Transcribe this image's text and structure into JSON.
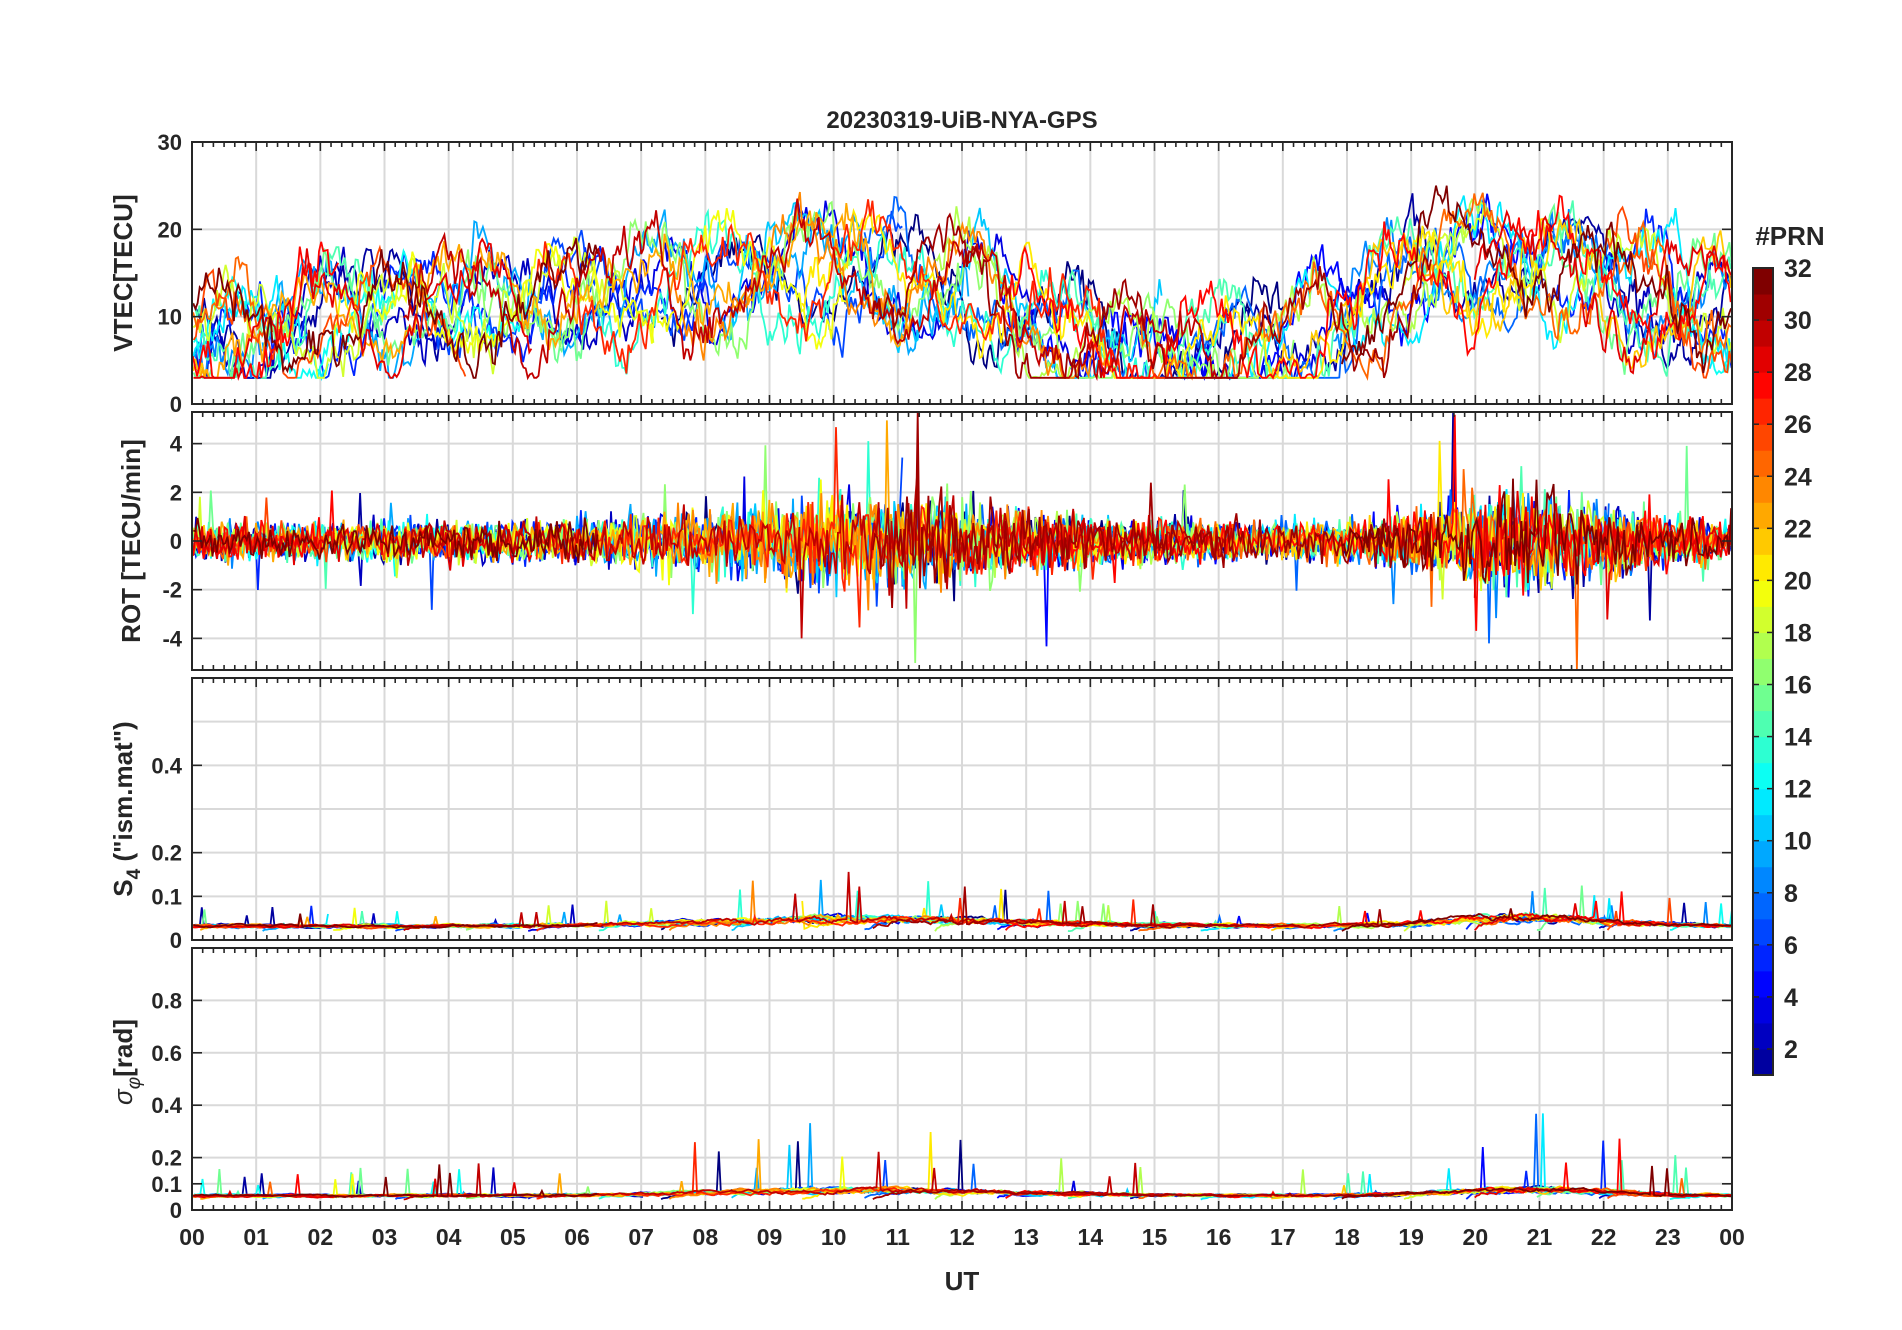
{
  "chart_data": {
    "type": "line",
    "title": "20230319-UiB-NYA-GPS",
    "x_axis": {
      "label": "UT",
      "range_hours": [
        0,
        24
      ],
      "tick_labels": [
        "00",
        "01",
        "02",
        "03",
        "04",
        "05",
        "06",
        "07",
        "08",
        "09",
        "10",
        "11",
        "12",
        "13",
        "14",
        "15",
        "16",
        "17",
        "18",
        "19",
        "20",
        "21",
        "22",
        "23",
        "00"
      ]
    },
    "colorbar": {
      "title": "#PRN",
      "range": [
        1,
        32
      ],
      "tick_values": [
        2,
        4,
        6,
        8,
        10,
        12,
        14,
        16,
        18,
        20,
        22,
        24,
        26,
        28,
        30,
        32
      ],
      "tick_labels": [
        "2",
        "4",
        "6",
        "8",
        "10",
        "12",
        "14",
        "16",
        "18",
        "20",
        "22",
        "24",
        "26",
        "28",
        "30",
        "32"
      ],
      "colormap": "jet",
      "color_stops": [
        "#00007f",
        "#0000ff",
        "#007fff",
        "#00ffff",
        "#7fff7f",
        "#ffff00",
        "#ff7f00",
        "#ff0000",
        "#7f0000"
      ]
    },
    "grid": true,
    "panels": [
      {
        "id": "vtec",
        "ylabel": "VTEC[TECU]",
        "ylim": [
          0,
          30
        ],
        "yticks": [
          0,
          10,
          20,
          30
        ],
        "ytick_labels": [
          "0",
          "10",
          "20",
          "30"
        ],
        "gridlines": [
          0,
          10,
          20,
          30
        ]
      },
      {
        "id": "rot",
        "ylabel": "ROT [TECU/min]",
        "ylim": [
          -5.3,
          5.3
        ],
        "yticks": [
          -4,
          -2,
          0,
          2,
          4
        ],
        "ytick_labels": [
          "-4",
          "-2",
          "0",
          "2",
          "4"
        ],
        "gridlines": [
          -4,
          -2,
          0,
          2,
          4
        ]
      },
      {
        "id": "s4",
        "ylabel_main": "S",
        "ylabel_sub": "4",
        "ylabel_rest": " (\"ism.mat\")",
        "ylim": [
          0,
          0.6
        ],
        "yticks": [
          0,
          0.1,
          0.2,
          0.4
        ],
        "ytick_labels": [
          "0",
          "0.1",
          "0.2",
          "0.4"
        ],
        "gridlines": [
          0.1,
          0.2,
          0.3,
          0.4,
          0.5
        ]
      },
      {
        "id": "sigma",
        "ylabel_main": "σ",
        "ylabel_sub": "φ",
        "ylabel_rest": "[rad]",
        "ylim": [
          0,
          1
        ],
        "yticks": [
          0,
          0.1,
          0.2,
          0.4,
          0.6,
          0.8
        ],
        "ytick_labels": [
          "0",
          "0.1",
          "0.2",
          "0.4",
          "0.6",
          "0.8"
        ],
        "gridlines": [
          0.1,
          0.2,
          0.4,
          0.6,
          0.8
        ]
      }
    ],
    "series_count": 32,
    "series_prn": [
      1,
      2,
      3,
      4,
      5,
      6,
      7,
      8,
      9,
      10,
      11,
      12,
      13,
      14,
      15,
      16,
      17,
      18,
      19,
      20,
      21,
      22,
      23,
      24,
      25,
      26,
      27,
      28,
      29,
      30,
      31,
      32
    ]
  }
}
